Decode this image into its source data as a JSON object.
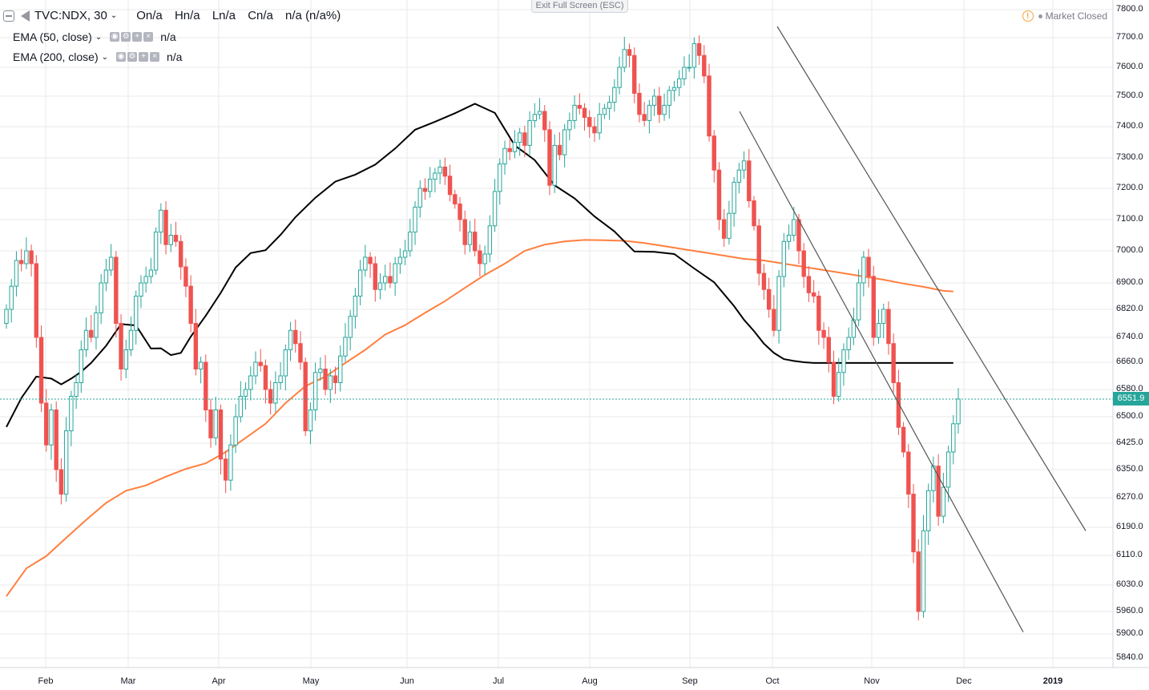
{
  "header": {
    "symbol": "TVC:NDX, 30",
    "open": "On/a",
    "high": "Hn/a",
    "low": "Ln/a",
    "close": "Cn/a",
    "change": "n/a (n/a%)"
  },
  "indicators": [
    {
      "name": "EMA (50, close)",
      "value": "n/a"
    },
    {
      "name": "EMA (200, close)",
      "value": "n/a"
    }
  ],
  "exit_fullscreen": "Exit Full Screen (ESC)",
  "market_status": "Market Closed",
  "last_price": "6551.9",
  "colors": {
    "up": "#26a69a",
    "down": "#ef5350",
    "ema50": "#000000",
    "ema200": "#ff7f3f",
    "grid": "#eaeaea",
    "last": "#26a69a"
  },
  "chart_data": {
    "type": "candlestick",
    "y_ticks": [
      "7800.0",
      "7700.0",
      "7600.0",
      "7500.0",
      "7400.0",
      "7300.0",
      "7200.0",
      "7100.0",
      "7000.0",
      "6900.0",
      "6820.0",
      "6740.0",
      "6660.0",
      "6580.0",
      "6500.0",
      "6425.0",
      "6350.0",
      "6270.0",
      "6190.0",
      "6110.0",
      "6030.0",
      "5960.0",
      "5900.0",
      "5840.0"
    ],
    "x_ticks": [
      "Feb",
      "Mar",
      "Apr",
      "May",
      "Jun",
      "Jul",
      "Aug",
      "Sep",
      "Oct",
      "Nov",
      "Dec",
      "2019"
    ],
    "ylim": [
      5810,
      7820
    ],
    "grid": true,
    "series": [
      {
        "name": "EMA (50, close)",
        "x": [
          0,
          3,
          6,
          9,
          11,
          13,
          15,
          17,
          20,
          23,
          26,
          29,
          31,
          33,
          35,
          37,
          40,
          43,
          46,
          49,
          52,
          55,
          58,
          62,
          66,
          70,
          74,
          78,
          82,
          86,
          90,
          94,
          98,
          102,
          106,
          110,
          114,
          118,
          122,
          126,
          130,
          134,
          138,
          142,
          146,
          148,
          150,
          152,
          154,
          156,
          158,
          160,
          162,
          164,
          166,
          168,
          170,
          172,
          174,
          176,
          178,
          180,
          182,
          184,
          186,
          188,
          190
        ],
        "values": [
          6471,
          6555,
          6618,
          6612,
          6595,
          6612,
          6632,
          6658,
          6713,
          6778,
          6774,
          6704,
          6705,
          6683,
          6690,
          6742,
          6802,
          6870,
          6948,
          6993,
          7002,
          7051,
          7108,
          7170,
          7222,
          7245,
          7278,
          7330,
          7390,
          7416,
          7444,
          7475,
          7445,
          7340,
          7293,
          7210,
          7168,
          7110,
          7062,
          6998,
          6997,
          6990,
          6945,
          6902,
          6830,
          6790,
          6758,
          6720,
          6690,
          6670,
          6664,
          6660,
          6658,
          6658,
          6658,
          6658,
          6658,
          6658,
          6658,
          6658,
          6658,
          6658,
          6658,
          6658,
          6658,
          6658,
          6658
        ]
      },
      {
        "name": "EMA (200, close)",
        "x": [
          0,
          4,
          8,
          12,
          16,
          20,
          24,
          28,
          32,
          36,
          40,
          44,
          48,
          52,
          56,
          60,
          64,
          68,
          72,
          76,
          80,
          84,
          88,
          92,
          96,
          100,
          104,
          108,
          112,
          116,
          120,
          124,
          128,
          132,
          136,
          140,
          144,
          148,
          152,
          156,
          160,
          164,
          168,
          172,
          176,
          180,
          184,
          188,
          190
        ],
        "values": [
          6000,
          6075,
          6108,
          6160,
          6210,
          6256,
          6290,
          6305,
          6330,
          6352,
          6368,
          6400,
          6440,
          6480,
          6540,
          6590,
          6618,
          6658,
          6700,
          6748,
          6775,
          6810,
          6845,
          6885,
          6925,
          6960,
          7000,
          7020,
          7030,
          7035,
          7034,
          7032,
          7025,
          7015,
          7005,
          6995,
          6985,
          6975,
          6970,
          6960,
          6950,
          6940,
          6930,
          6920,
          6910,
          6898,
          6888,
          6876,
          6874
        ]
      }
    ],
    "closes": [
      6820,
      6890,
      6970,
      6960,
      7000,
      6960,
      6740,
      6540,
      6420,
      6520,
      6350,
      6280,
      6460,
      6560,
      6600,
      6700,
      6760,
      6740,
      6810,
      6900,
      6940,
      6980,
      6780,
      6640,
      6700,
      6760,
      6860,
      6900,
      6920,
      6940,
      7060,
      7130,
      7020,
      7050,
      7030,
      6950,
      6890,
      6780,
      6640,
      6660,
      6520,
      6440,
      6520,
      6380,
      6320,
      6420,
      6500,
      6560,
      6580,
      6620,
      6660,
      6650,
      6580,
      6540,
      6600,
      6620,
      6700,
      6760,
      6720,
      6660,
      6460,
      6520,
      6630,
      6640,
      6580,
      6620,
      6600,
      6680,
      6740,
      6800,
      6860,
      6940,
      6980,
      6960,
      6880,
      6900,
      6920,
      6900,
      6960,
      6980,
      7000,
      7060,
      7140,
      7200,
      7190,
      7230,
      7250,
      7270,
      7240,
      7180,
      7150,
      7100,
      7020,
      7060,
      7000,
      6960,
      6990,
      7080,
      7190,
      7280,
      7330,
      7320,
      7350,
      7380,
      7340,
      7420,
      7440,
      7450,
      7390,
      7210,
      7340,
      7310,
      7390,
      7420,
      7470,
      7460,
      7430,
      7400,
      7380,
      7440,
      7460,
      7480,
      7530,
      7600,
      7660,
      7640,
      7510,
      7440,
      7420,
      7470,
      7500,
      7440,
      7470,
      7520,
      7530,
      7560,
      7600,
      7600,
      7680,
      7640,
      7570,
      7370,
      7260,
      7100,
      7040,
      7120,
      7220,
      7260,
      7290,
      7160,
      7080,
      6930,
      6880,
      6820,
      6760,
      6920,
      7030,
      7050,
      7100,
      7000,
      6920,
      6870,
      6860,
      6760,
      6740,
      6660,
      6560,
      6630,
      6700,
      6740,
      6790,
      6900,
      6980,
      6920,
      6740,
      6780,
      6820,
      6720,
      6600,
      6470,
      6400,
      6280,
      6120,
      5960,
      6180,
      6290,
      6360,
      6220,
      6300,
      6400,
      6480,
      6552
    ],
    "x_axis_dates": [
      "Feb",
      "Mar",
      "Apr",
      "May",
      "Jun",
      "Jul",
      "Aug",
      "Sep",
      "Oct",
      "Nov",
      "Dec",
      "2019"
    ],
    "drawings": [
      {
        "name": "upper-trendline",
        "from": [
          "Oct",
          "7740"
        ],
        "to": [
          "2019",
          "6180"
        ]
      },
      {
        "name": "lower-trendline",
        "from": [
          "Sep",
          "7450"
        ],
        "to": [
          "Dec",
          "5905"
        ]
      }
    ]
  }
}
